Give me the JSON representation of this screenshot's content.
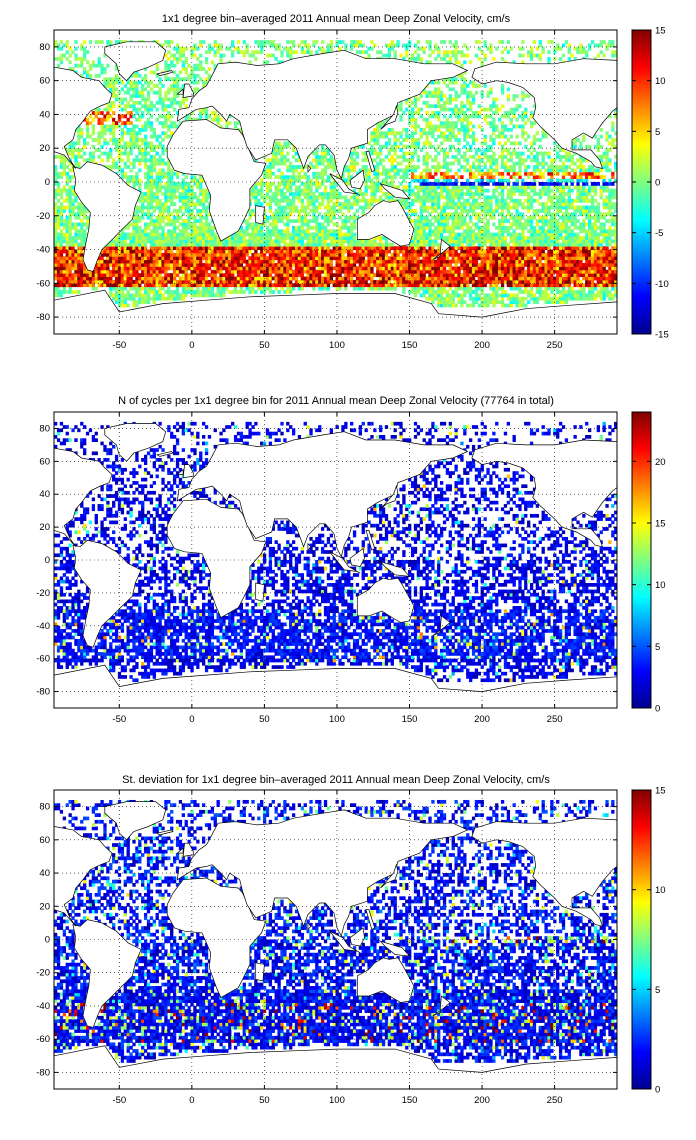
{
  "chart_data": [
    {
      "type": "heatmap",
      "title": "1x1 degree bin–averaged 2011 Annual mean Deep Zonal Velocity, cm/s",
      "xlabel": "",
      "ylabel": "",
      "xlim": [
        -95,
        293
      ],
      "ylim": [
        -90,
        90
      ],
      "x_ticks": [
        -50,
        0,
        50,
        100,
        150,
        200,
        250
      ],
      "y_ticks": [
        80,
        60,
        40,
        20,
        0,
        -20,
        -40,
        -60,
        -80
      ],
      "grid": true,
      "grid_style": "dotted",
      "colormap": "jet",
      "colorbar": {
        "range": [
          -15,
          15
        ],
        "ticks": [
          15,
          10,
          5,
          0,
          -5,
          -10,
          -15
        ],
        "placement": "right"
      },
      "pattern": "zonal"
    },
    {
      "type": "heatmap",
      "title": "N of cycles per 1x1 degree bin for 2011 Annual mean Deep Zonal Velocity (77764 in total)",
      "xlabel": "",
      "ylabel": "",
      "xlim": [
        -95,
        293
      ],
      "ylim": [
        -90,
        90
      ],
      "x_ticks": [
        -50,
        0,
        50,
        100,
        150,
        200,
        250
      ],
      "y_ticks": [
        80,
        60,
        40,
        20,
        0,
        -20,
        -40,
        -60,
        -80
      ],
      "grid": true,
      "grid_style": "dotted",
      "colormap": "jet",
      "colorbar": {
        "range": [
          0,
          24
        ],
        "ticks": [
          20,
          15,
          10,
          5,
          0
        ],
        "placement": "right"
      },
      "pattern": "count"
    },
    {
      "type": "heatmap",
      "title": "St. deviation for 1x1 degree bin–averaged 2011 Annual mean Deep Zonal Velocity, cm/s",
      "xlabel": "",
      "ylabel": "",
      "xlim": [
        -95,
        293
      ],
      "ylim": [
        -90,
        90
      ],
      "x_ticks": [
        -50,
        0,
        50,
        100,
        150,
        200,
        250
      ],
      "y_ticks": [
        80,
        60,
        40,
        20,
        0,
        -20,
        -40,
        -60,
        -80
      ],
      "grid": true,
      "grid_style": "dotted",
      "colormap": "jet",
      "colorbar": {
        "range": [
          0,
          15
        ],
        "ticks": [
          15,
          10,
          5,
          0
        ],
        "placement": "right"
      },
      "pattern": "std"
    }
  ]
}
